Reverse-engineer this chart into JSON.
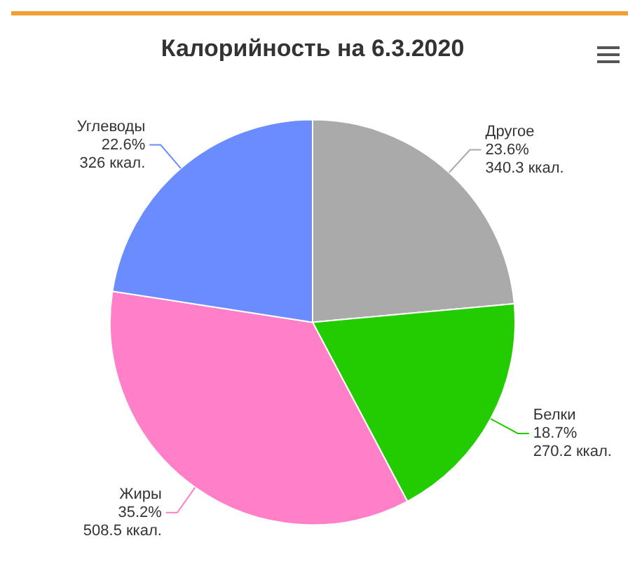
{
  "chart_data": {
    "type": "pie",
    "title": "Калорийность на 6.3.2020",
    "categories": [
      "Другое",
      "Белки",
      "Жиры",
      "Углеводы"
    ],
    "values": [
      340.3,
      270.2,
      508.5,
      326
    ],
    "colors": [
      "#aaaaaa",
      "#22cc00",
      "#ff7fc8",
      "#6b8cff"
    ],
    "value_labels": [
      "23.6%\n340.3 ккал.",
      "18.7%\n270.2 ккал.",
      "35.2%\n508.5 ккал.",
      "22.6%\n326 ккал."
    ],
    "legend": false
  }
}
